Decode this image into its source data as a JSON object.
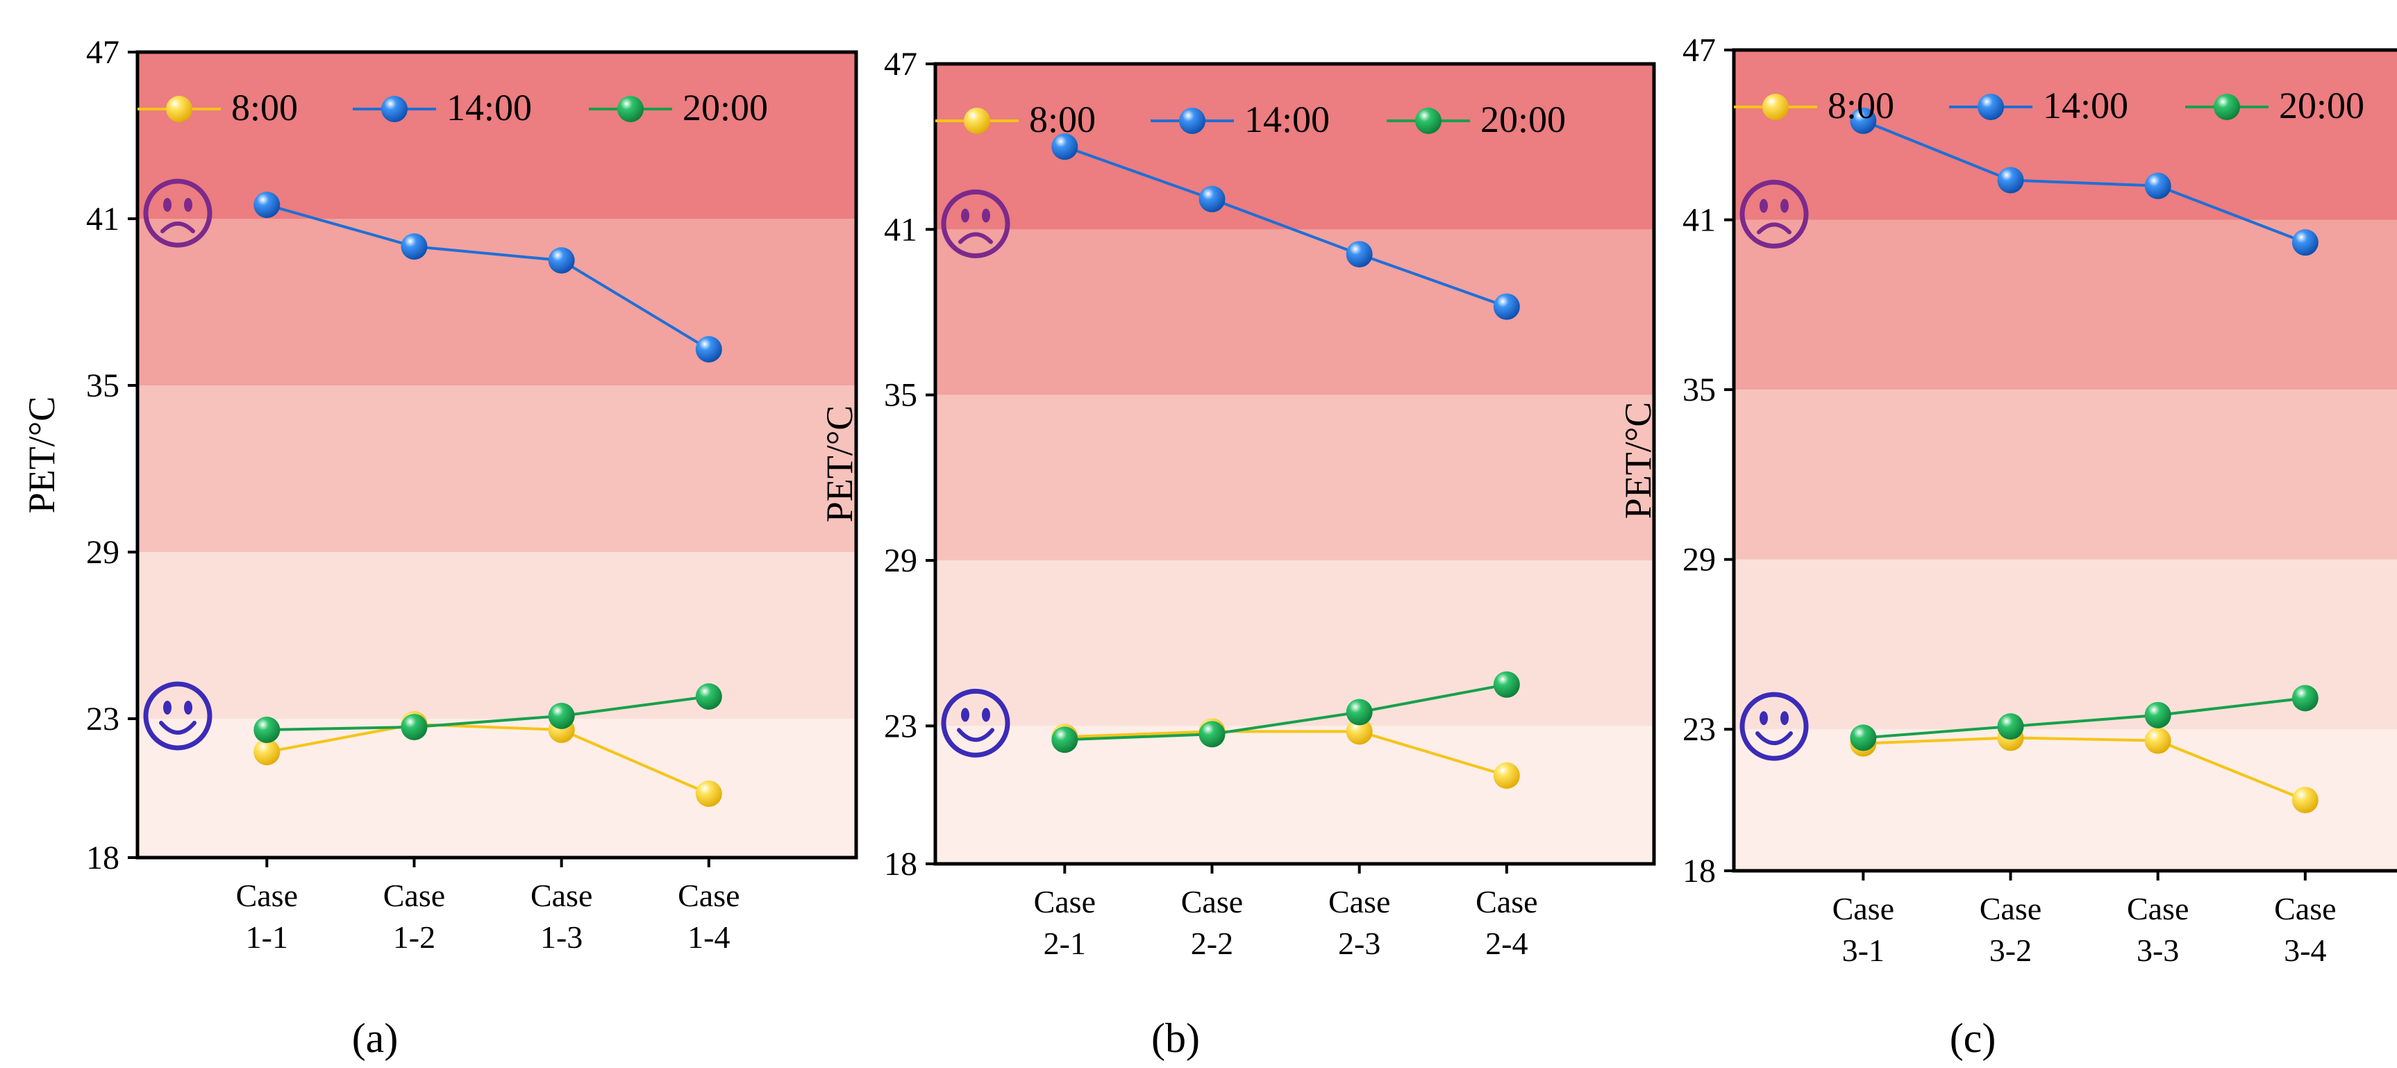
{
  "bands": [
    {
      "from": 18,
      "to": 23,
      "color": "#fdeee9"
    },
    {
      "from": 23,
      "to": 29,
      "color": "#fbe0da"
    },
    {
      "from": 29,
      "to": 35,
      "color": "#f7c2bc"
    },
    {
      "from": 35,
      "to": 41,
      "color": "#f2a29f"
    },
    {
      "from": 41,
      "to": 47,
      "color": "#ec7d80"
    }
  ],
  "icons": [
    {
      "name": "sad-face-icon",
      "color": "#7b2a8c",
      "value": 41.2
    },
    {
      "name": "happy-face-icon",
      "color": "#3b2bb8",
      "value": 23.1
    }
  ],
  "chart_data": [
    {
      "type": "line",
      "panel_label": "(a)",
      "ylabel": "PET/°C",
      "ylim": [
        18,
        47
      ],
      "yticks": [
        "18",
        "23",
        "29",
        "35",
        "41",
        "47"
      ],
      "categories": [
        [
          "Case",
          "1-1"
        ],
        [
          "Case",
          "1-2"
        ],
        [
          "Case",
          "1-3"
        ],
        [
          "Case",
          "1-4"
        ]
      ],
      "legend_position": "top",
      "series": [
        {
          "name": "8:00",
          "color": "#f5c518",
          "values": [
            21.8,
            22.8,
            22.6,
            20.3
          ]
        },
        {
          "name": "14:00",
          "color": "#1f6fd6",
          "values": [
            41.5,
            40.0,
            39.5,
            36.3
          ]
        },
        {
          "name": "20:00",
          "color": "#19a04b",
          "values": [
            22.6,
            22.7,
            23.1,
            23.8
          ]
        }
      ]
    },
    {
      "type": "line",
      "panel_label": "(b)",
      "ylabel": "PET/°C",
      "ylim": [
        18,
        47
      ],
      "yticks": [
        "18",
        "23",
        "29",
        "35",
        "41",
        "47"
      ],
      "categories": [
        [
          "Case",
          "2-1"
        ],
        [
          "Case",
          "2-2"
        ],
        [
          "Case",
          "2-3"
        ],
        [
          "Case",
          "2-4"
        ]
      ],
      "legend_position": "top",
      "series": [
        {
          "name": "8:00",
          "color": "#f5c518",
          "values": [
            22.6,
            22.8,
            22.8,
            21.2
          ]
        },
        {
          "name": "14:00",
          "color": "#1f6fd6",
          "values": [
            44.0,
            42.1,
            40.1,
            38.2
          ]
        },
        {
          "name": "20:00",
          "color": "#19a04b",
          "values": [
            22.5,
            22.7,
            23.5,
            24.5
          ]
        }
      ]
    },
    {
      "type": "line",
      "panel_label": "(c)",
      "ylabel": "PET/°C",
      "ylim": [
        18,
        47
      ],
      "yticks": [
        "18",
        "23",
        "29",
        "35",
        "41",
        "47"
      ],
      "categories": [
        [
          "Case",
          "3-1"
        ],
        [
          "Case",
          "3-2"
        ],
        [
          "Case",
          "3-3"
        ],
        [
          "Case",
          "3-4"
        ]
      ],
      "legend_position": "top",
      "series": [
        {
          "name": "8:00",
          "color": "#f5c518",
          "values": [
            22.5,
            22.7,
            22.6,
            20.5
          ]
        },
        {
          "name": "14:00",
          "color": "#1f6fd6",
          "values": [
            44.5,
            42.4,
            42.2,
            40.2
          ]
        },
        {
          "name": "20:00",
          "color": "#19a04b",
          "values": [
            22.7,
            23.1,
            23.5,
            24.1
          ]
        }
      ]
    }
  ]
}
